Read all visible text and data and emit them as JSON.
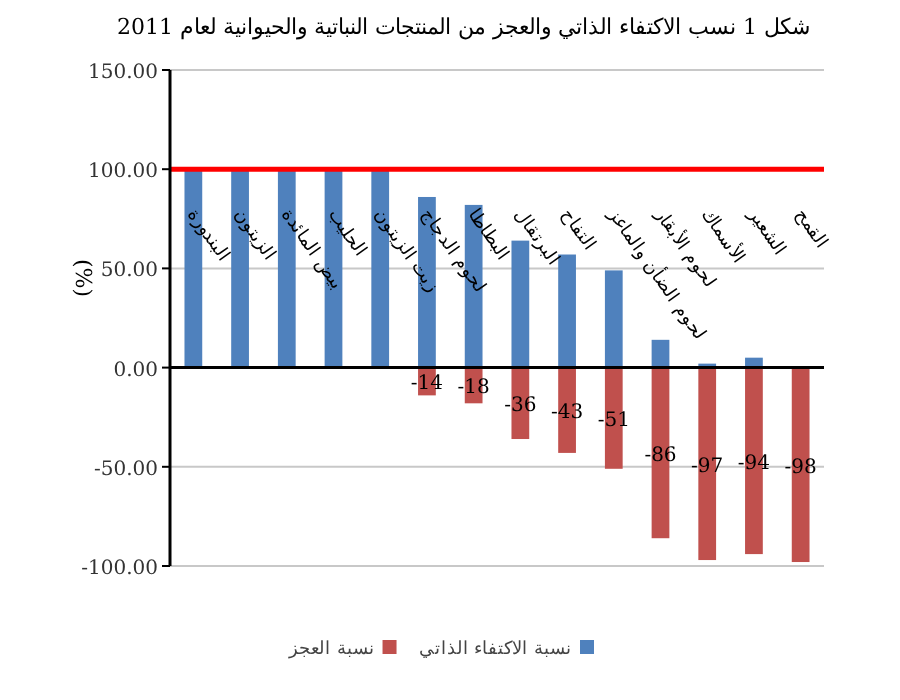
{
  "chart_data": {
    "type": "bar",
    "title": "شكل 1 نسب الاكتفاء الذاتي والعجز من المنتجات النباتية والحيوانية لعام 2011",
    "ylabel": "(%)",
    "categories": [
      "البندورة",
      "الزيتون",
      "بيض المائدة",
      "الحليب",
      "زيت الزيتون",
      "لحوم الدجاج",
      "البطاطا",
      "البرتقال",
      "التفاح",
      "لحوم الضأن والماعز",
      "لحوم الأبقار",
      "الأسماك",
      "الشعير",
      "القمح"
    ],
    "series": [
      {
        "name": "نسبة الاكتفاء الذاتي",
        "color": "#4f81bd",
        "values": [
          100,
          100,
          100,
          100,
          100,
          86,
          82,
          64,
          57,
          49,
          14,
          2,
          5,
          0
        ]
      },
      {
        "name": "نسبة العجز",
        "color": "#c0504d",
        "values": [
          0,
          0,
          0,
          0,
          0,
          -14,
          -18,
          -36,
          -43,
          -51,
          -86,
          -97,
          -94,
          -98
        ],
        "value_labels": [
          null,
          null,
          null,
          null,
          null,
          "-14",
          "-18",
          "-36",
          "-43",
          "-51",
          "-86",
          "-97",
          "-94",
          "-98"
        ]
      }
    ],
    "ref_lines": [
      {
        "axis": "y",
        "value": 100,
        "color": "#ff0000"
      }
    ],
    "ylim": [
      -100,
      150
    ],
    "yticks": [
      {
        "value": -100,
        "label": "-100.00"
      },
      {
        "value": -50,
        "label": "-50.00"
      },
      {
        "value": 0,
        "label": "0.00"
      },
      {
        "value": 50,
        "label": "50.00"
      },
      {
        "value": 100,
        "label": "100.00"
      },
      {
        "value": 150,
        "label": "150.00"
      }
    ],
    "stacked": true,
    "grid": "y",
    "legend": "bottom"
  }
}
